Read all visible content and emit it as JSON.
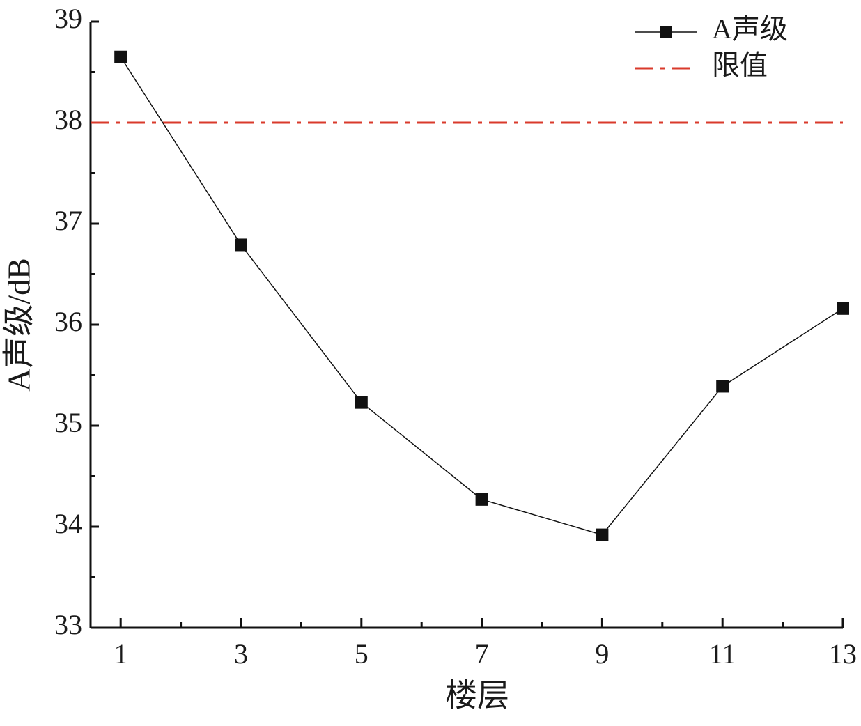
{
  "chart_data": {
    "type": "line",
    "x_label": "楼层",
    "y_label": "A声级/dB",
    "x": [
      1,
      3,
      5,
      7,
      9,
      11,
      13
    ],
    "series": [
      {
        "name": "A声级",
        "color": "#111111",
        "marker": "square",
        "values": [
          38.65,
          36.79,
          35.23,
          34.27,
          33.92,
          35.39,
          36.16
        ]
      }
    ],
    "reference_lines": [
      {
        "name": "限值",
        "value": 38,
        "color": "#d93a2b",
        "style": "dashdot"
      }
    ],
    "xlim": [
      0.5,
      13
    ],
    "ylim": [
      33,
      39
    ],
    "xticks": [
      1,
      3,
      5,
      7,
      9,
      11,
      13
    ],
    "yticks": [
      33,
      34,
      35,
      36,
      37,
      38,
      39
    ],
    "legend": "top-right",
    "grid": false
  }
}
